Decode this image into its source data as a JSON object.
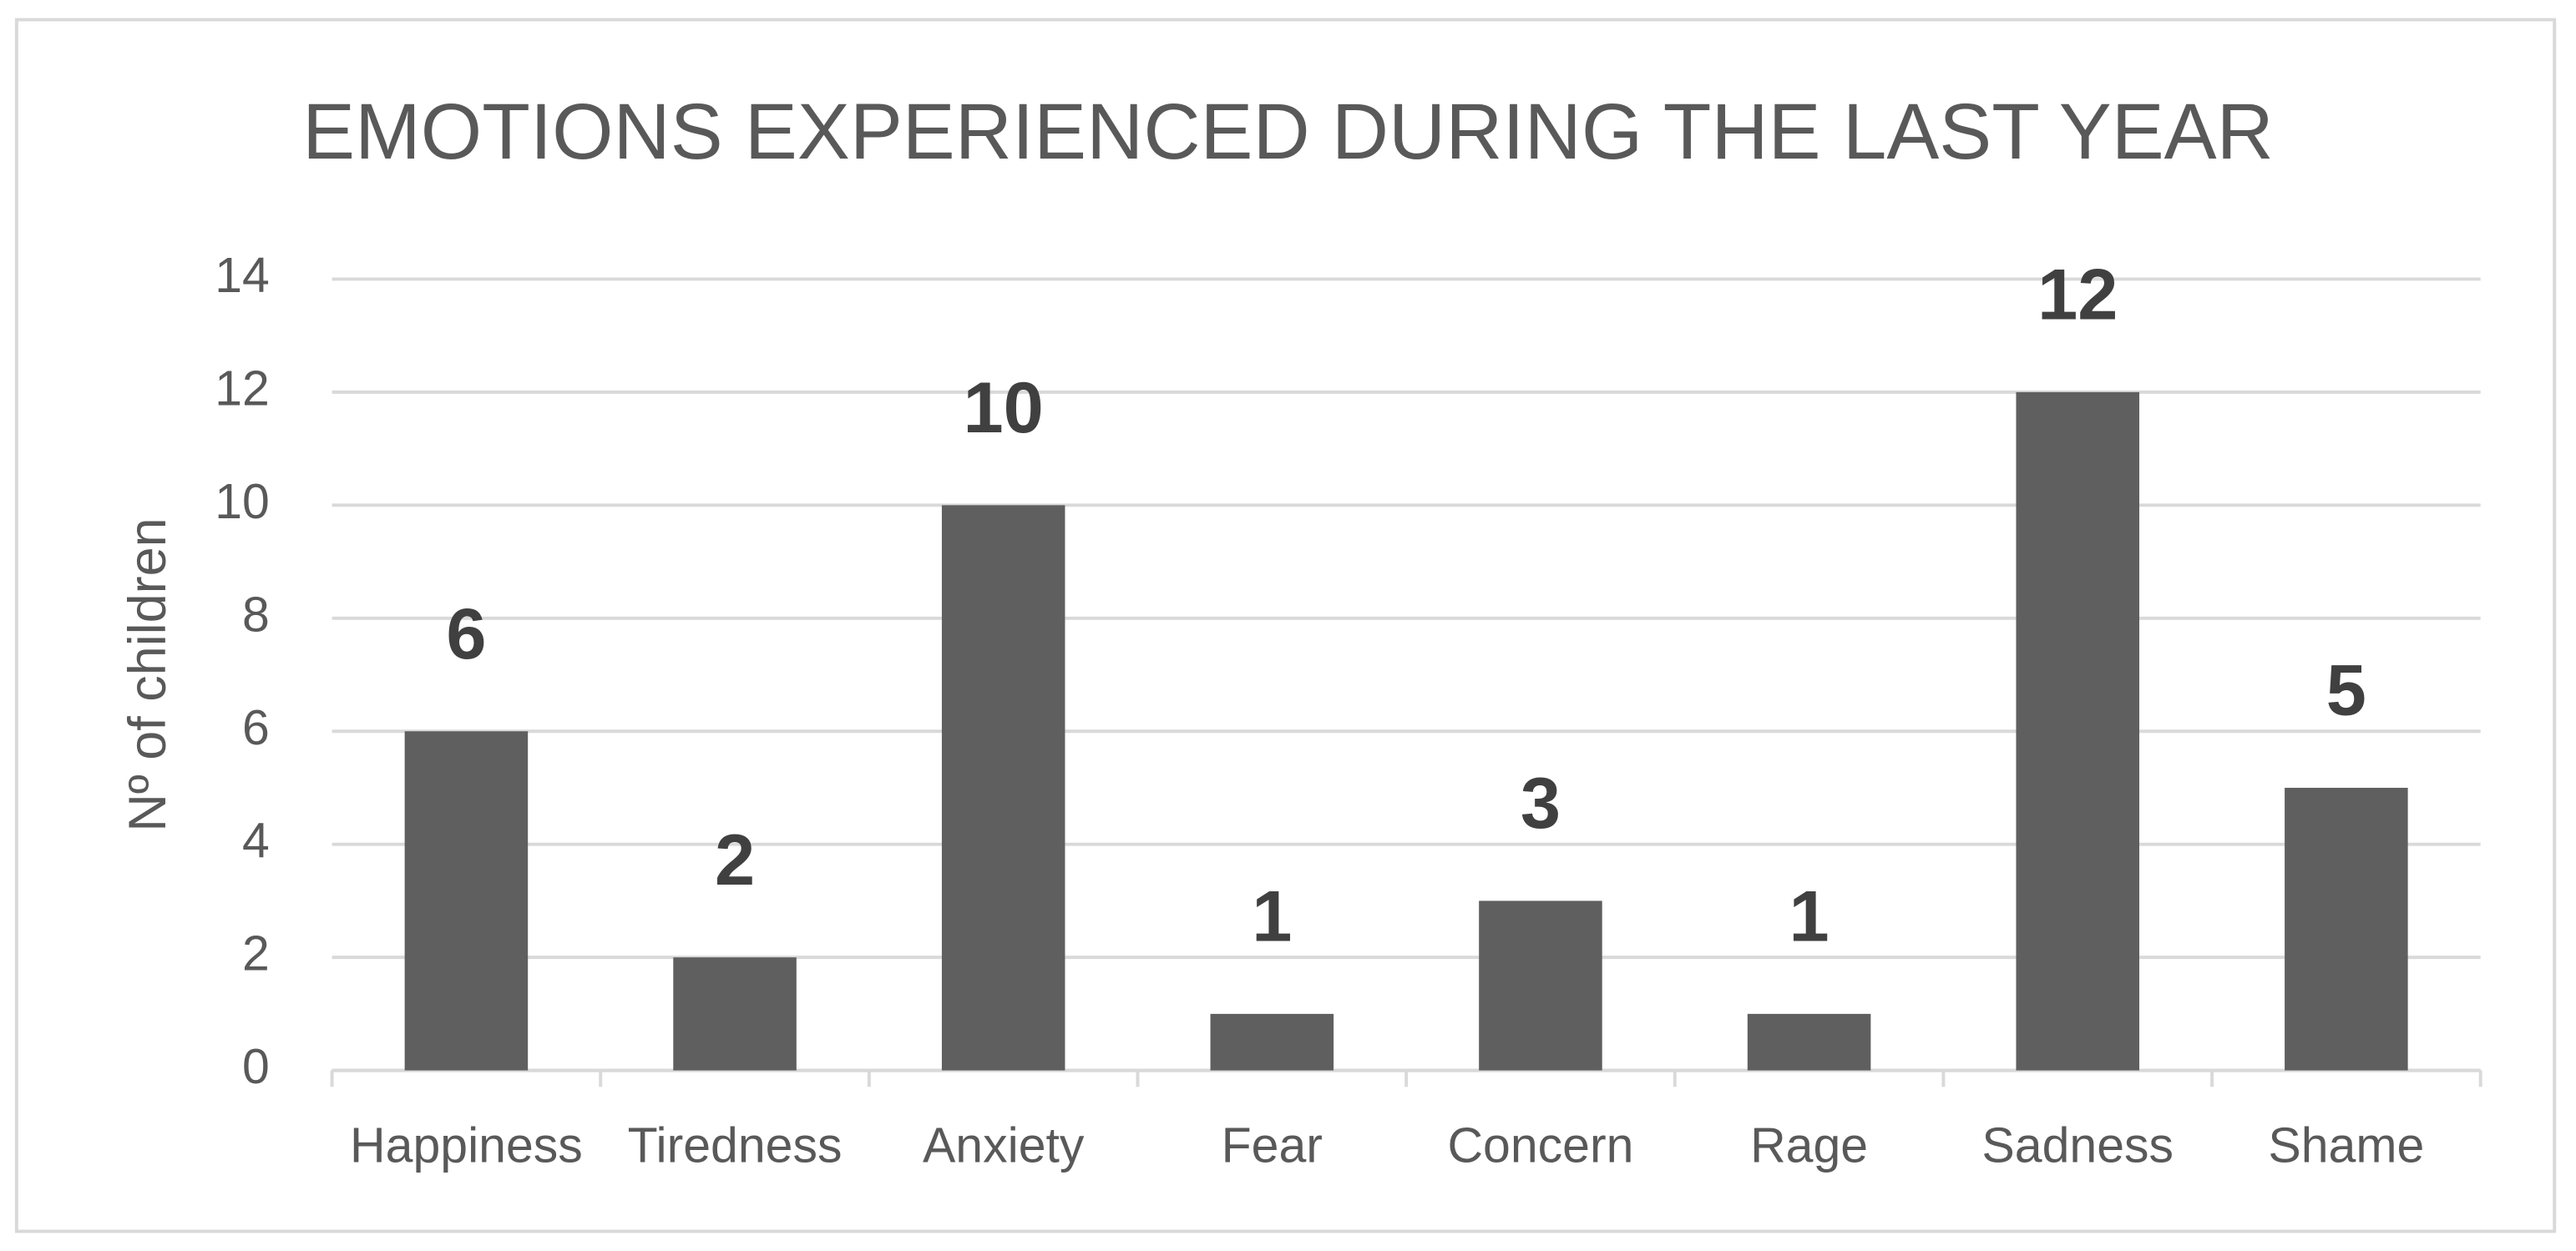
{
  "chart_data": {
    "type": "bar",
    "title": "EMOTIONS EXPERIENCED DURING THE LAST YEAR",
    "ylabel": "Nº of children",
    "categories": [
      "Happiness",
      "Tiredness",
      "Anxiety",
      "Fear",
      "Concern",
      "Rage",
      "Sadness",
      "Shame"
    ],
    "values": [
      6,
      2,
      10,
      1,
      3,
      1,
      12,
      5
    ],
    "color": "#5f5f5f",
    "ylim": [
      0,
      14
    ],
    "yticks": [
      0,
      2,
      4,
      6,
      8,
      10,
      12,
      14
    ],
    "grid": true
  }
}
